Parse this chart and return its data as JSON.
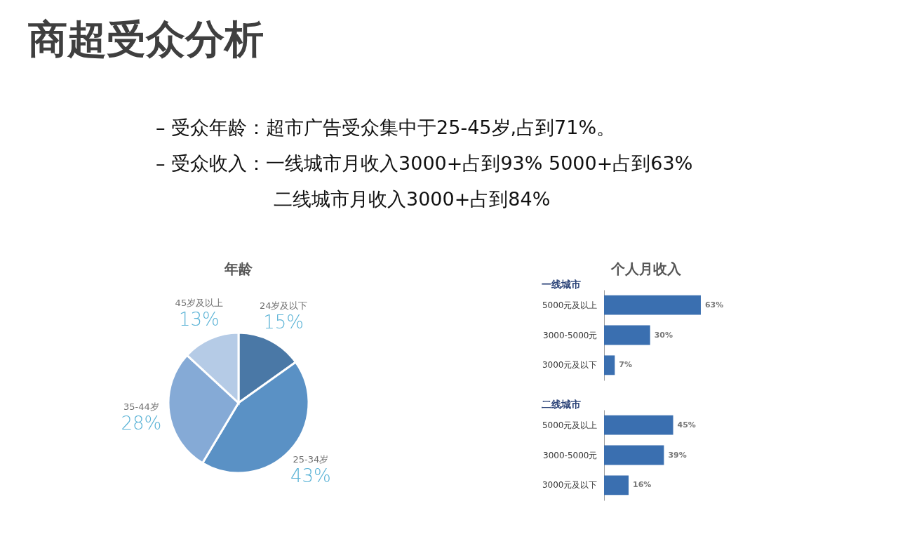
{
  "chart_data": [
    {
      "type": "other",
      "title": "商超受众分析",
      "annotations": [
        "– 受众年龄：超市广告受众集中于25-45岁,占到71%。",
        "– 受众收入：一线城市月收入3000+占到93% 5000+占到63%",
        "二线城市月收入3000+占到84%"
      ]
    },
    {
      "type": "pie",
      "title": "年龄",
      "categories": [
        "24岁及以下",
        "25-34岁",
        "35-44岁",
        "45岁及以上"
      ],
      "values": [
        15,
        43,
        28,
        13
      ],
      "colors": [
        "#4a78a6",
        "#5a91c5",
        "#85aad6",
        "#b5cbe6"
      ],
      "value_labels": [
        "15%",
        "43%",
        "28%",
        "13%"
      ]
    },
    {
      "type": "bar",
      "orientation": "horizontal",
      "title": "个人月收入",
      "subtitle": "一线城市",
      "categories": [
        "5000元及以上",
        "3000-5000元",
        "3000元及以下"
      ],
      "values": [
        63,
        30,
        7
      ],
      "color": "#3a6fb0",
      "value_labels": [
        "63%",
        "30%",
        "7%"
      ]
    },
    {
      "type": "bar",
      "orientation": "horizontal",
      "title": "二线城市",
      "categories": [
        "5000元及以上",
        "3000-5000元",
        "3000元及以下"
      ],
      "values": [
        45,
        39,
        16
      ],
      "color": "#3a6fb0",
      "value_labels": [
        "45%",
        "39%",
        "16%"
      ]
    }
  ]
}
